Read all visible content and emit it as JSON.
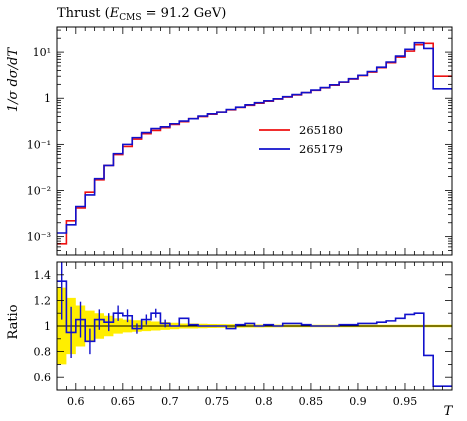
{
  "title": "Thrust (E_CMS = 91.2 GeV)",
  "title_parts": {
    "prefix": "Thrust (",
    "var": "E",
    "sub": "CMS",
    "suffix": " = 91.2 GeV)"
  },
  "chart_data": [
    {
      "type": "line",
      "drawstyle": "steps",
      "ylabel": "1/σ dσ/dT",
      "yscale": "log",
      "xlim": [
        0.58,
        1.0
      ],
      "ylim": [
        0.0004,
        35
      ],
      "legend": "center-right",
      "xticks": [
        0.6,
        0.65,
        0.7,
        0.75,
        0.8,
        0.85,
        0.9,
        0.95
      ],
      "yticks": [
        {
          "value": 0.001,
          "label": "10⁻³"
        },
        {
          "value": 0.01,
          "label": "10⁻²"
        },
        {
          "value": 0.1,
          "label": "10⁻¹"
        },
        {
          "value": 1,
          "label": "1"
        },
        {
          "value": 10,
          "label": "10¹"
        }
      ],
      "bin_edges": [
        0.58,
        0.59,
        0.6,
        0.61,
        0.62,
        0.63,
        0.64,
        0.65,
        0.66,
        0.67,
        0.68,
        0.69,
        0.7,
        0.71,
        0.72,
        0.73,
        0.74,
        0.75,
        0.76,
        0.77,
        0.78,
        0.79,
        0.8,
        0.81,
        0.82,
        0.83,
        0.84,
        0.85,
        0.86,
        0.87,
        0.88,
        0.89,
        0.9,
        0.91,
        0.92,
        0.93,
        0.94,
        0.95,
        0.96,
        0.97,
        0.98,
        0.99,
        1.0
      ],
      "series": [
        {
          "name": "265180",
          "color": "#ee1111",
          "values": [
            0.0007,
            0.0022,
            0.0042,
            0.0092,
            0.017,
            0.035,
            0.06,
            0.09,
            0.13,
            0.17,
            0.2,
            0.23,
            0.27,
            0.31,
            0.36,
            0.4,
            0.45,
            0.5,
            0.56,
            0.63,
            0.7,
            0.78,
            0.86,
            0.96,
            1.06,
            1.18,
            1.32,
            1.48,
            1.68,
            1.92,
            2.22,
            2.6,
            3.1,
            3.7,
            4.6,
            5.9,
            7.8,
            10.5,
            14.5,
            15.5,
            3.0,
            3.0
          ]
        },
        {
          "name": "265179",
          "color": "#1111cc",
          "values": [
            0.0012,
            0.0018,
            0.0045,
            0.008,
            0.018,
            0.035,
            0.063,
            0.1,
            0.14,
            0.18,
            0.22,
            0.24,
            0.28,
            0.32,
            0.36,
            0.41,
            0.46,
            0.5,
            0.57,
            0.64,
            0.72,
            0.8,
            0.88,
            0.97,
            1.08,
            1.2,
            1.33,
            1.5,
            1.7,
            1.95,
            2.25,
            2.65,
            3.15,
            3.8,
            4.7,
            6.1,
            8.2,
            11.5,
            16.0,
            12.0,
            1.6,
            1.6
          ]
        }
      ]
    },
    {
      "type": "line",
      "drawstyle": "steps",
      "ylabel": "Ratio",
      "xlabel": "T",
      "xlim": [
        0.58,
        1.0
      ],
      "ylim": [
        0.5,
        1.5
      ],
      "reference_line": 1.0,
      "xticks": [
        0.6,
        0.65,
        0.7,
        0.75,
        0.8,
        0.85,
        0.9,
        0.95
      ],
      "yticks": [
        {
          "value": 0.6,
          "label": "0.6"
        },
        {
          "value": 0.8,
          "label": "0.8"
        },
        {
          "value": 1,
          "label": "1"
        },
        {
          "value": 1.2,
          "label": "1.2"
        },
        {
          "value": 1.4,
          "label": "1.4"
        }
      ],
      "band_color": "#ffee00",
      "band_halfwidth": [
        0.3,
        0.22,
        0.16,
        0.12,
        0.1,
        0.08,
        0.06,
        0.05,
        0.045,
        0.04,
        0.035,
        0.03,
        0.025,
        0.02,
        0.02,
        0.018,
        0.016,
        0.015,
        0.014,
        0.013,
        0.012,
        0.012,
        0.011,
        0.011,
        0.01,
        0.01,
        0.01,
        0.01,
        0.01,
        0.01,
        0.01,
        0.01,
        0.01,
        0.01,
        0.01,
        0.01,
        0.01,
        0.01,
        0.01,
        0.01,
        0.01,
        0.01
      ],
      "series": [
        {
          "name": "265179",
          "color": "#1111cc",
          "values": [
            1.35,
            0.95,
            1.05,
            0.88,
            1.05,
            1.03,
            1.1,
            1.08,
            0.98,
            1.05,
            1.1,
            1.02,
            1.0,
            1.06,
            1.01,
            1.0,
            1.0,
            1.0,
            0.98,
            1.01,
            1.02,
            1.0,
            1.01,
            1.0,
            1.02,
            1.02,
            1.01,
            1.0,
            1.0,
            1.0,
            1.01,
            1.01,
            1.02,
            1.02,
            1.03,
            1.04,
            1.06,
            1.09,
            1.1,
            0.77,
            0.53,
            0.53
          ],
          "errors": [
            0.3,
            0.2,
            0.14,
            0.1,
            0.08,
            0.07,
            0.06,
            0.05,
            0.04,
            0.04,
            0.035,
            0.03,
            0.025,
            0.02,
            0.02,
            0.02,
            0.015,
            0.015,
            0.015,
            0.012,
            0.012,
            0.012,
            0.011,
            0.011,
            0.01,
            0.01,
            0.01,
            0.01,
            0.01,
            0.01,
            0.01,
            0.01,
            0.01,
            0.01,
            0.01,
            0.01,
            0.01,
            0.01,
            0.01,
            0.01,
            0.01,
            0.01
          ]
        }
      ]
    }
  ]
}
